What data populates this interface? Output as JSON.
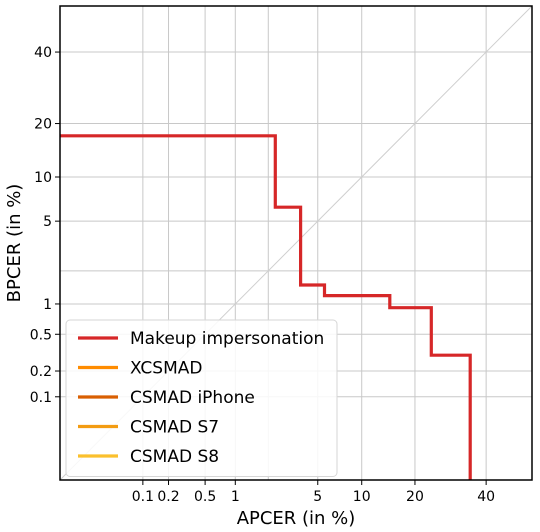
{
  "chart_data": {
    "type": "line",
    "xlabel": "APCER (in %)",
    "ylabel": "BPCER (in %)",
    "x_scale": "probit",
    "y_scale": "probit",
    "xlim": [
      0.008,
      55
    ],
    "ylim": [
      0.008,
      55
    ],
    "x_ticks": [
      0.1,
      0.2,
      0.5,
      1,
      5,
      10,
      20,
      40
    ],
    "x_tick_labels": [
      "0.1",
      "0.2",
      "0.5",
      "1",
      "5",
      "10",
      "20",
      "40"
    ],
    "y_ticks": [
      0.1,
      0.2,
      0.5,
      1,
      5,
      10,
      20,
      40
    ],
    "y_tick_labels": [
      "0.1",
      "0.2",
      "0.5",
      "1",
      "5",
      "10",
      "20",
      "40"
    ],
    "x_gridlines": [
      0.1,
      0.2,
      0.5,
      1,
      2,
      5,
      10,
      20,
      40
    ],
    "y_gridlines": [
      0.1,
      0.2,
      0.5,
      1,
      2,
      5,
      10,
      20,
      40
    ],
    "grid": true,
    "diagonal_reference": true,
    "legend_position": "bottom-left",
    "series": [
      {
        "name": "Makeup impersonation",
        "color": "#d62728",
        "points": [
          [
            0.008,
            17.3
          ],
          [
            2.3,
            17.3
          ],
          [
            2.3,
            6.3
          ],
          [
            3.7,
            6.3
          ],
          [
            3.7,
            1.5
          ],
          [
            5.6,
            1.5
          ],
          [
            5.6,
            1.2
          ],
          [
            14.7,
            1.2
          ],
          [
            14.7,
            0.92
          ],
          [
            24.0,
            0.92
          ],
          [
            24.0,
            0.3
          ],
          [
            35.0,
            0.3
          ],
          [
            35.0,
            0.008
          ]
        ]
      },
      {
        "name": "XCSMAD",
        "color": "#ff8c00",
        "points": []
      },
      {
        "name": "CSMAD iPhone",
        "color": "#d95f02",
        "points": []
      },
      {
        "name": "CSMAD S7",
        "color": "#f39c12",
        "points": []
      },
      {
        "name": "CSMAD S8",
        "color": "#fbc02d",
        "points": []
      }
    ]
  }
}
